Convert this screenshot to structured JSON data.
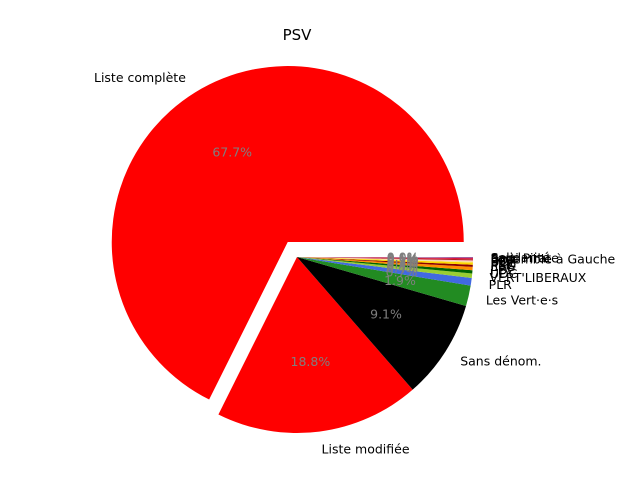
{
  "chart_data": {
    "type": "pie",
    "title": "PSV",
    "explode_first": true,
    "slices": [
      {
        "label": "Liste complète",
        "value": 67.7,
        "pct_label": "67.7%",
        "color": "#ff0000"
      },
      {
        "label": "Liste modifiée",
        "value": 18.8,
        "pct_label": "18.8%",
        "color": "#ff0000"
      },
      {
        "label": "Sans dénom.",
        "value": 9.1,
        "pct_label": "9.1%",
        "color": "#000000"
      },
      {
        "label": "Les Vert·e·s",
        "value": 1.9,
        "pct_label": "1.9%",
        "color": "#228b22"
      },
      {
        "label": "PLR",
        "value": 0.7,
        "pct_label": "0.7%",
        "color": "#4169e1"
      },
      {
        "label": "VERT'LIBERAUX",
        "value": 0.4,
        "pct_label": "0.4%",
        "color": "#9acd32"
      },
      {
        "label": "UDC",
        "value": 0.3,
        "pct_label": "0.3%",
        "color": "#006400"
      },
      {
        "label": "PDC",
        "value": 0.3,
        "pct_label": "0.3%",
        "color": "#ff8c00"
      },
      {
        "label": "EàG",
        "value": 0.2,
        "pct_label": "0.2%",
        "color": "#8b0000"
      },
      {
        "label": "PBD",
        "value": 0.2,
        "pct_label": "0.2%",
        "color": "#ffd700"
      },
      {
        "label": "PEV",
        "value": 0.1,
        "pct_label": "0.1%",
        "color": "#f0e68c"
      },
      {
        "label": "UDF",
        "value": 0.1,
        "pct_label": "0.1%",
        "color": "#ffb6c1"
      },
      {
        "label": "POP",
        "value": 0.1,
        "pct_label": "0.1%",
        "color": "#b22222"
      },
      {
        "label": "Ensemble à Gauche",
        "value": 0.1,
        "pct_label": "0.1%",
        "color": "#dc143c"
      },
      {
        "label": "Parti Pirate",
        "value": 0.05,
        "pct_label": "0.0%",
        "color": "#800080"
      },
      {
        "label": "Solidarité",
        "value": 0.05,
        "pct_label": "0.0%",
        "color": "#c0c0c0"
      }
    ]
  }
}
